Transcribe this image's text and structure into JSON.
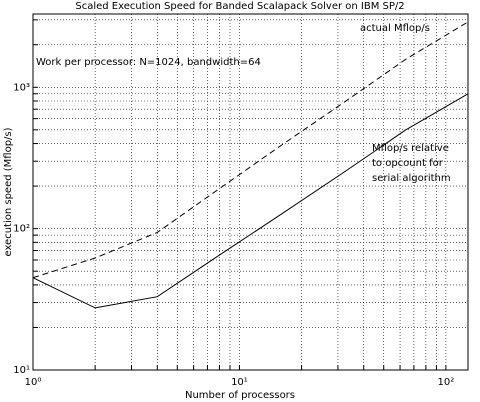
{
  "chart_data": {
    "type": "line",
    "title": "Scaled Execution Speed for Banded Scalapack Solver on IBM SP/2",
    "xlabel": "Number of processors",
    "ylabel": "execution speed (Mflop/s)",
    "x": [
      1,
      2,
      4,
      8,
      16,
      32,
      64,
      128
    ],
    "series": [
      {
        "name": "actual Mflop/s",
        "color": "#000000",
        "dash": "6 4",
        "values": [
          45,
          62,
          94,
          192,
          390,
          780,
          1580,
          2900
        ]
      },
      {
        "name": "Mflop/s relative to opcount for serial algorithm",
        "color": "#000000",
        "dash": "none",
        "values": [
          45,
          27.5,
          33,
          65,
          127,
          250,
          500,
          900
        ]
      }
    ],
    "annotations": [
      "Work per processor: N=1024, bandwidth=64"
    ],
    "xlim": [
      1,
      128
    ],
    "ylim": [
      10,
      3300
    ],
    "log_x": true,
    "log_y": true,
    "grid": true,
    "xticks": [
      {
        "value": 1,
        "label": "10⁰"
      },
      {
        "value": 10,
        "label": "10¹"
      },
      {
        "value": 100,
        "label": "10²"
      }
    ],
    "yticks": [
      {
        "value": 10,
        "label": "10¹"
      },
      {
        "value": 100,
        "label": "10²"
      },
      {
        "value": 1000,
        "label": "10³"
      }
    ],
    "x_minor_ticks": [
      2,
      3,
      4,
      5,
      6,
      7,
      8,
      9,
      20,
      30,
      40,
      50,
      60,
      70,
      80,
      90
    ],
    "y_minor_ticks": [
      20,
      30,
      40,
      50,
      60,
      70,
      80,
      90,
      200,
      300,
      400,
      500,
      600,
      700,
      800,
      900,
      2000,
      3000
    ]
  }
}
